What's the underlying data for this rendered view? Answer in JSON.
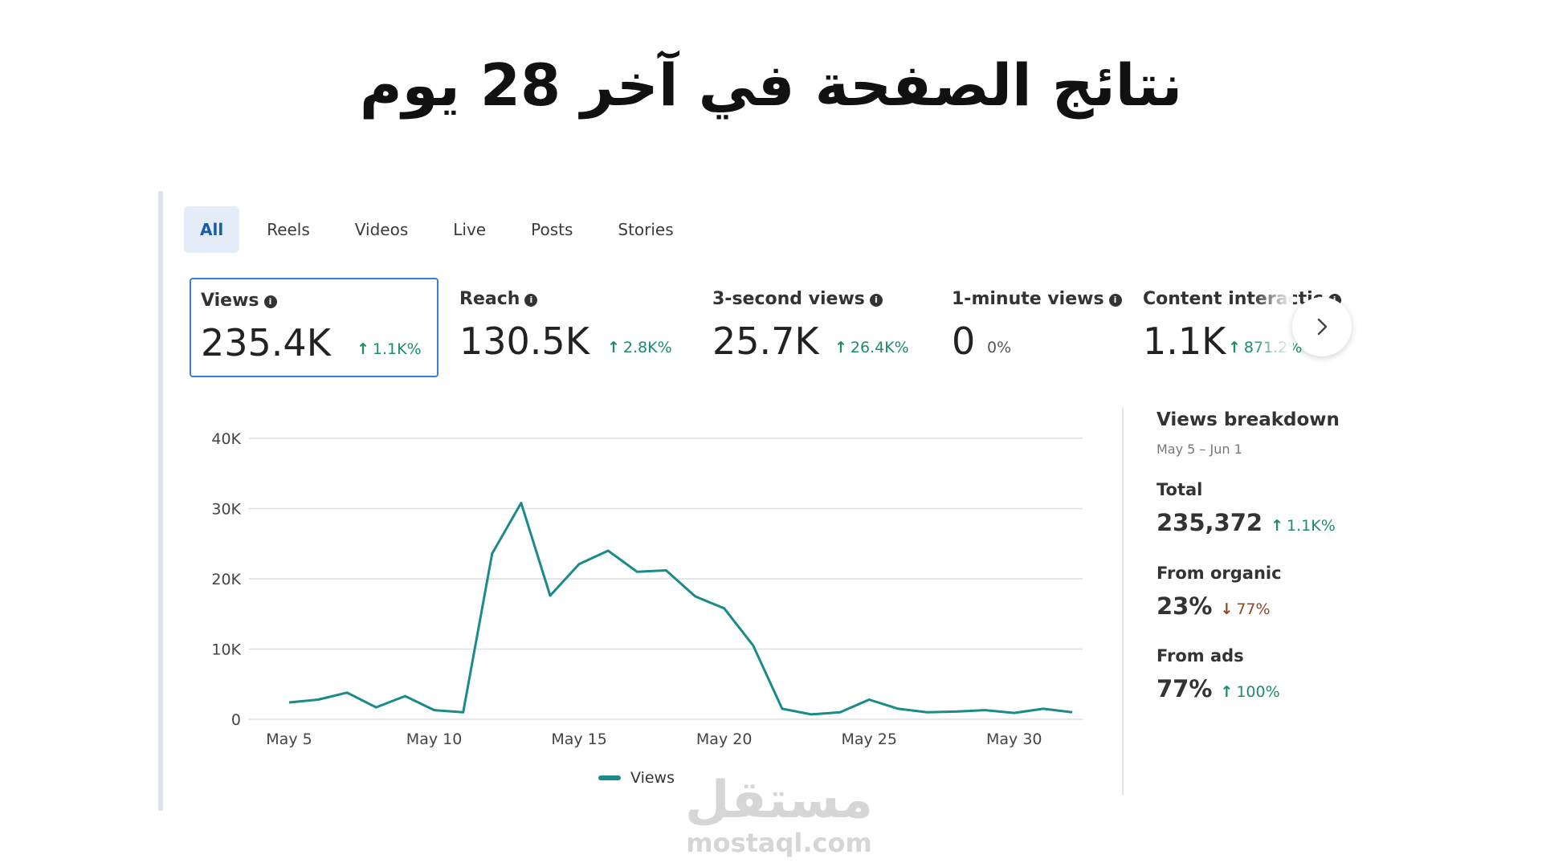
{
  "page_title": "نتائج الصفحة في آخر 28 يوم",
  "tabs": [
    "All",
    "Reels",
    "Videos",
    "Live",
    "Posts",
    "Stories"
  ],
  "active_tab": "All",
  "metrics": [
    {
      "label": "Views",
      "value": "235.4K",
      "change": "1.1K%",
      "direction": "up"
    },
    {
      "label": "Reach",
      "value": "130.5K",
      "change": "2.8K%",
      "direction": "up"
    },
    {
      "label": "3-second views",
      "value": "25.7K",
      "change": "26.4K%",
      "direction": "up"
    },
    {
      "label": "1-minute views",
      "value": "0",
      "change": "0%",
      "direction": "none"
    },
    {
      "label": "Content interactic",
      "value": "1.1K",
      "change": "871.2%",
      "direction": "up"
    }
  ],
  "chart_data": {
    "type": "line",
    "title": "",
    "xlabel": "",
    "ylabel": "",
    "ylim": [
      0,
      40000
    ],
    "y_ticks": [
      "0",
      "10K",
      "20K",
      "30K",
      "40K"
    ],
    "y_tick_values": [
      0,
      10000,
      20000,
      30000,
      40000
    ],
    "x_tick_labels": [
      "May 5",
      "May 10",
      "May 15",
      "May 20",
      "May 25",
      "May 30"
    ],
    "x_tick_days": [
      5,
      10,
      15,
      20,
      25,
      30
    ],
    "grid": true,
    "legend": "bottom",
    "series": [
      {
        "name": "Views",
        "color": "#1a8a8a",
        "x": [
          5,
          6,
          7,
          8,
          9,
          10,
          11,
          12,
          13,
          14,
          15,
          16,
          17,
          18,
          19,
          20,
          21,
          22,
          23,
          24,
          25,
          26,
          27,
          28,
          29,
          30,
          31,
          32
        ],
        "values": [
          2400,
          2800,
          3800,
          1700,
          3300,
          1300,
          1000,
          23600,
          30800,
          17600,
          22100,
          24000,
          21000,
          21200,
          17500,
          15800,
          10500,
          1500,
          700,
          1000,
          2800,
          1500,
          1000,
          1100,
          1300,
          900,
          1500,
          1000
        ]
      }
    ]
  },
  "breakdown": {
    "title": "Views breakdown",
    "range": "May 5 – Jun 1",
    "total_label": "Total",
    "total_value": "235,372",
    "total_change": "1.1K%",
    "organic_label": "From organic",
    "organic_value": "23%",
    "organic_change": "77%",
    "ads_label": "From ads",
    "ads_value": "77%",
    "ads_change": "100%"
  },
  "watermark": {
    "arabic": "مستقل",
    "english": "mostaql.com"
  },
  "colors": {
    "accent": "#3b7fd4",
    "line": "#1a8a8a",
    "positive": "#1f8a70",
    "negative": "#8a4a2a"
  }
}
